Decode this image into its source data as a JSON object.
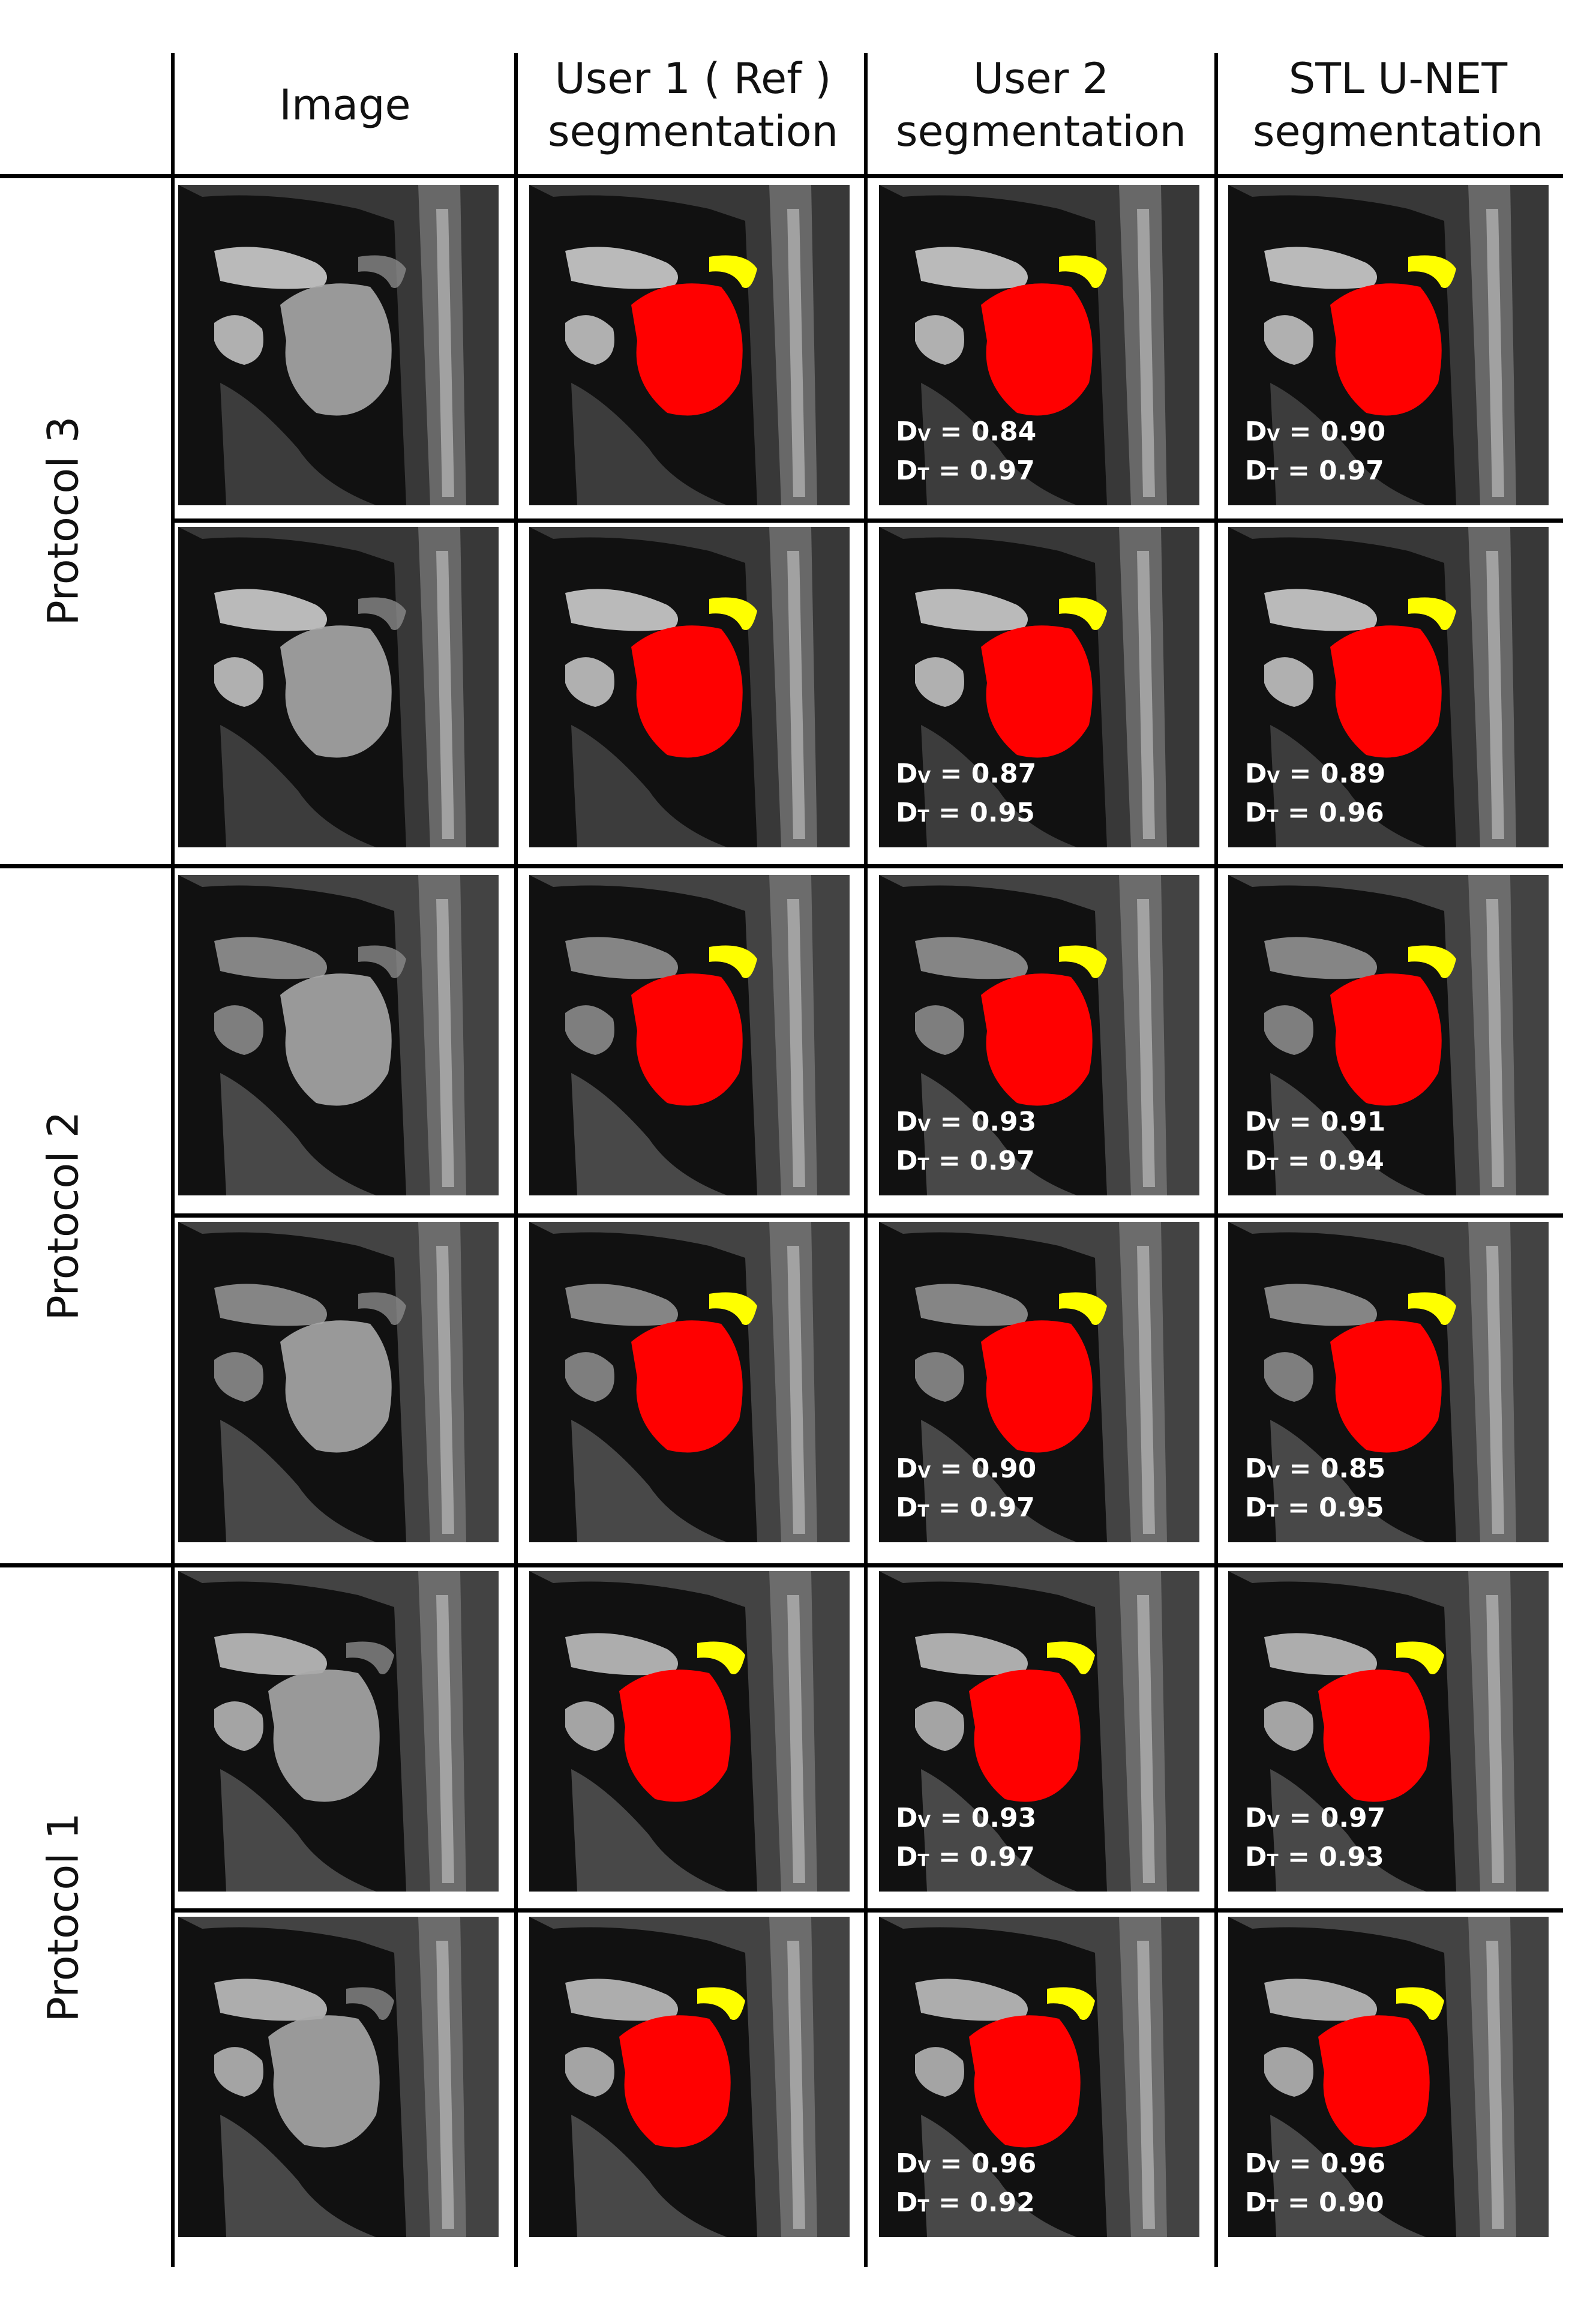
{
  "headers": {
    "image": "Image",
    "user1_line1": "User 1 ( Ref )",
    "user1_line2": "segmentation",
    "user2_line1": "User 2",
    "user2_line2": "segmentation",
    "unet_line1": "STL U-NET",
    "unet_line2": "segmentation"
  },
  "protocols": {
    "p3": "Protocol 3",
    "p2": "Protocol 2",
    "p1": "Protocol 1"
  },
  "dice_symbols": {
    "d": "D",
    "v": "V",
    "t": "T"
  },
  "rows": [
    {
      "protocol": "Protocol 3",
      "user2": {
        "dv": "= 0.84",
        "dt": "= 0.97"
      },
      "unet": {
        "dv": "= 0.90",
        "dt": "= 0.97"
      }
    },
    {
      "protocol": "Protocol 3",
      "user2": {
        "dv": "= 0.87",
        "dt": "= 0.95"
      },
      "unet": {
        "dv": "= 0.89",
        "dt": "= 0.96"
      }
    },
    {
      "protocol": "Protocol 2",
      "user2": {
        "dv": "= 0.93",
        "dt": "= 0.97"
      },
      "unet": {
        "dv": "= 0.91",
        "dt": "= 0.94"
      }
    },
    {
      "protocol": "Protocol 2",
      "user2": {
        "dv": "= 0.90",
        "dt": "= 0.97"
      },
      "unet": {
        "dv": "= 0.85",
        "dt": "= 0.95"
      }
    },
    {
      "protocol": "Protocol 1",
      "user2": {
        "dv": "= 0.93",
        "dt": "= 0.97"
      },
      "unet": {
        "dv": "= 0.97",
        "dt": "= 0.93"
      }
    },
    {
      "protocol": "Protocol 1",
      "user2": {
        "dv": "= 0.96",
        "dt": "= 0.92"
      },
      "unet": {
        "dv": "= 0.96",
        "dt": "= 0.90"
      }
    }
  ],
  "colors": {
    "tongue_mask": "#ff0000",
    "velum_mask": "#ffff00",
    "grid_line": "#000000"
  }
}
